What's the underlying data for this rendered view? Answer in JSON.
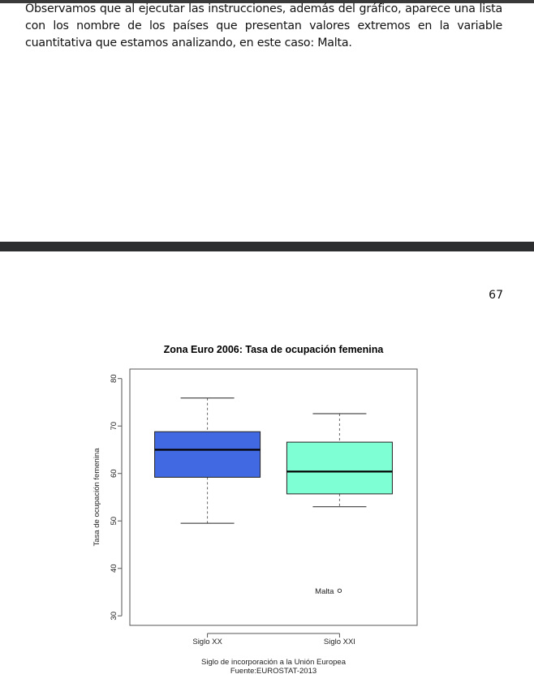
{
  "document": {
    "paragraph": "Observamos que al ejecutar las instrucciones, además del gráfico, aparece una lista con los nombre de los países que presentan valores extremos en la variable cuantitativa que estamos analizando, en este caso: Malta.",
    "page_number": "67"
  },
  "chart_data": {
    "type": "boxplot",
    "title": "Zona Euro 2006: Tasa de ocupación femenina",
    "xlabel": "Siglo de incorporación a la Unión Europea",
    "source": "Fuente:EUROSTAT-2013",
    "ylabel": "Tasa de ocupación femenina",
    "ylim": [
      28,
      82
    ],
    "yticks": [
      30,
      40,
      50,
      60,
      70,
      80
    ],
    "categories": [
      "Siglo XX",
      "Siglo XXI"
    ],
    "boxes": [
      {
        "category": "Siglo XX",
        "whisker_low": 49.5,
        "q1": 59.2,
        "median": 65.0,
        "q3": 68.8,
        "whisker_high": 75.9,
        "color": "#4169e1"
      },
      {
        "category": "Siglo XXI",
        "whisker_low": 53.0,
        "q1": 55.7,
        "median": 60.4,
        "q3": 66.6,
        "whisker_high": 72.6,
        "color": "#7fffd4"
      }
    ],
    "outliers": [
      {
        "category": "Siglo XXI",
        "value": 35.3,
        "label": "Malta"
      }
    ],
    "grid": false,
    "legend": "none"
  }
}
